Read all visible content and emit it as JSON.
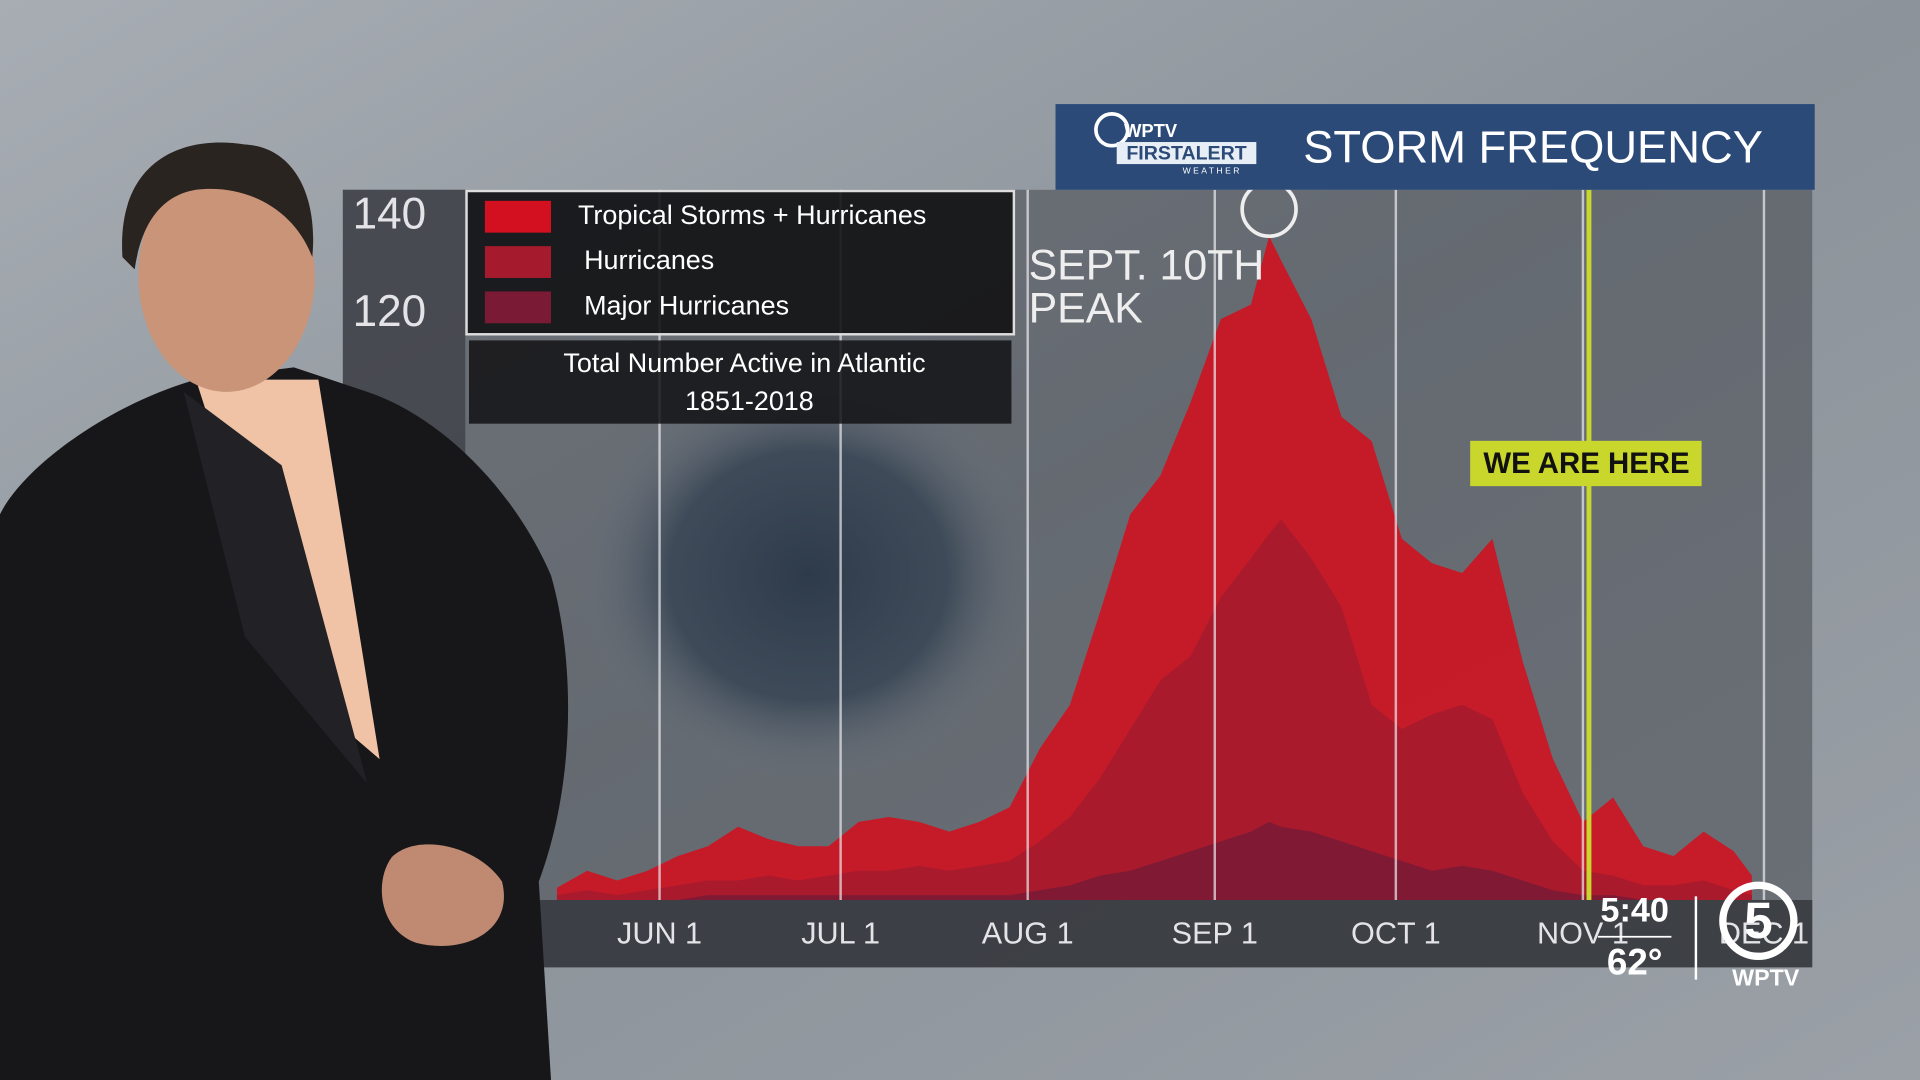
{
  "header": {
    "logo": {
      "station": "WPTV",
      "brand": "FIRSTALERT",
      "tag": "WEATHER"
    }
  },
  "chart_data": {
    "type": "area",
    "title": "STORM FREQUENCY",
    "subtitle": [
      "Total Number Active in Atlantic",
      "1851-2018"
    ],
    "annotation": [
      "SEPT. 10TH",
      "PEAK"
    ],
    "now_line": {
      "label": "WE ARE HERE",
      "x": 306,
      "color": "#c9d62c"
    },
    "x": [
      135,
      140,
      145,
      150,
      155,
      160,
      165,
      170,
      175,
      180,
      185,
      190,
      195,
      200,
      205,
      210,
      215,
      220,
      225,
      230,
      235,
      240,
      245,
      250,
      253,
      255,
      260,
      265,
      270,
      275,
      280,
      285,
      290,
      295,
      300,
      305,
      310,
      315,
      320,
      325,
      330,
      333
    ],
    "xlim": [
      133,
      343
    ],
    "xticks": [
      {
        "value": 152,
        "label": "JUN 1"
      },
      {
        "value": 182,
        "label": "JUL 1"
      },
      {
        "value": 213,
        "label": "AUG 1"
      },
      {
        "value": 244,
        "label": "SEP 1"
      },
      {
        "value": 274,
        "label": "OCT 1"
      },
      {
        "value": 305,
        "label": "NOV 1"
      },
      {
        "value": 335,
        "label": "DEC 1"
      }
    ],
    "ylim": [
      0,
      145
    ],
    "yticks": [
      120,
      140
    ],
    "grid": true,
    "series": [
      {
        "name": "Tropical Storms + Hurricanes",
        "color": "#d3101f",
        "values": [
          2.5,
          6,
          4,
          6,
          9,
          11,
          15,
          12.5,
          11,
          11,
          16,
          17,
          16,
          14,
          16,
          19,
          31,
          40,
          59,
          79,
          87,
          102,
          119,
          122,
          136,
          131,
          119,
          99,
          94,
          74,
          69,
          67,
          74,
          49,
          29,
          16,
          21,
          11,
          9,
          14,
          10,
          5
        ]
      },
      {
        "name": "Hurricanes",
        "color": "#a51a2c",
        "values": [
          1,
          2,
          1,
          2,
          3,
          4,
          4,
          5,
          4,
          5,
          6,
          6,
          7,
          6,
          7,
          8,
          12,
          17,
          25,
          35,
          45,
          50,
          62,
          70,
          75,
          78,
          70,
          60,
          40,
          35,
          38,
          40,
          37,
          22,
          12,
          6,
          5,
          3,
          3,
          4,
          2,
          1
        ]
      },
      {
        "name": "Major Hurricanes",
        "color": "#7a1a35",
        "values": [
          0,
          0,
          0,
          0,
          0,
          1,
          1,
          1,
          1,
          1,
          1,
          1,
          1,
          1,
          1,
          1,
          2,
          3,
          5,
          6,
          8,
          10,
          12,
          14,
          16,
          15,
          14,
          12,
          10,
          8,
          6,
          7,
          6,
          4,
          2,
          1,
          1,
          0,
          0,
          0,
          0,
          0
        ]
      }
    ]
  },
  "bug": {
    "time": "5:40",
    "temp": "62°",
    "channel": "5",
    "station": "WPTV"
  }
}
